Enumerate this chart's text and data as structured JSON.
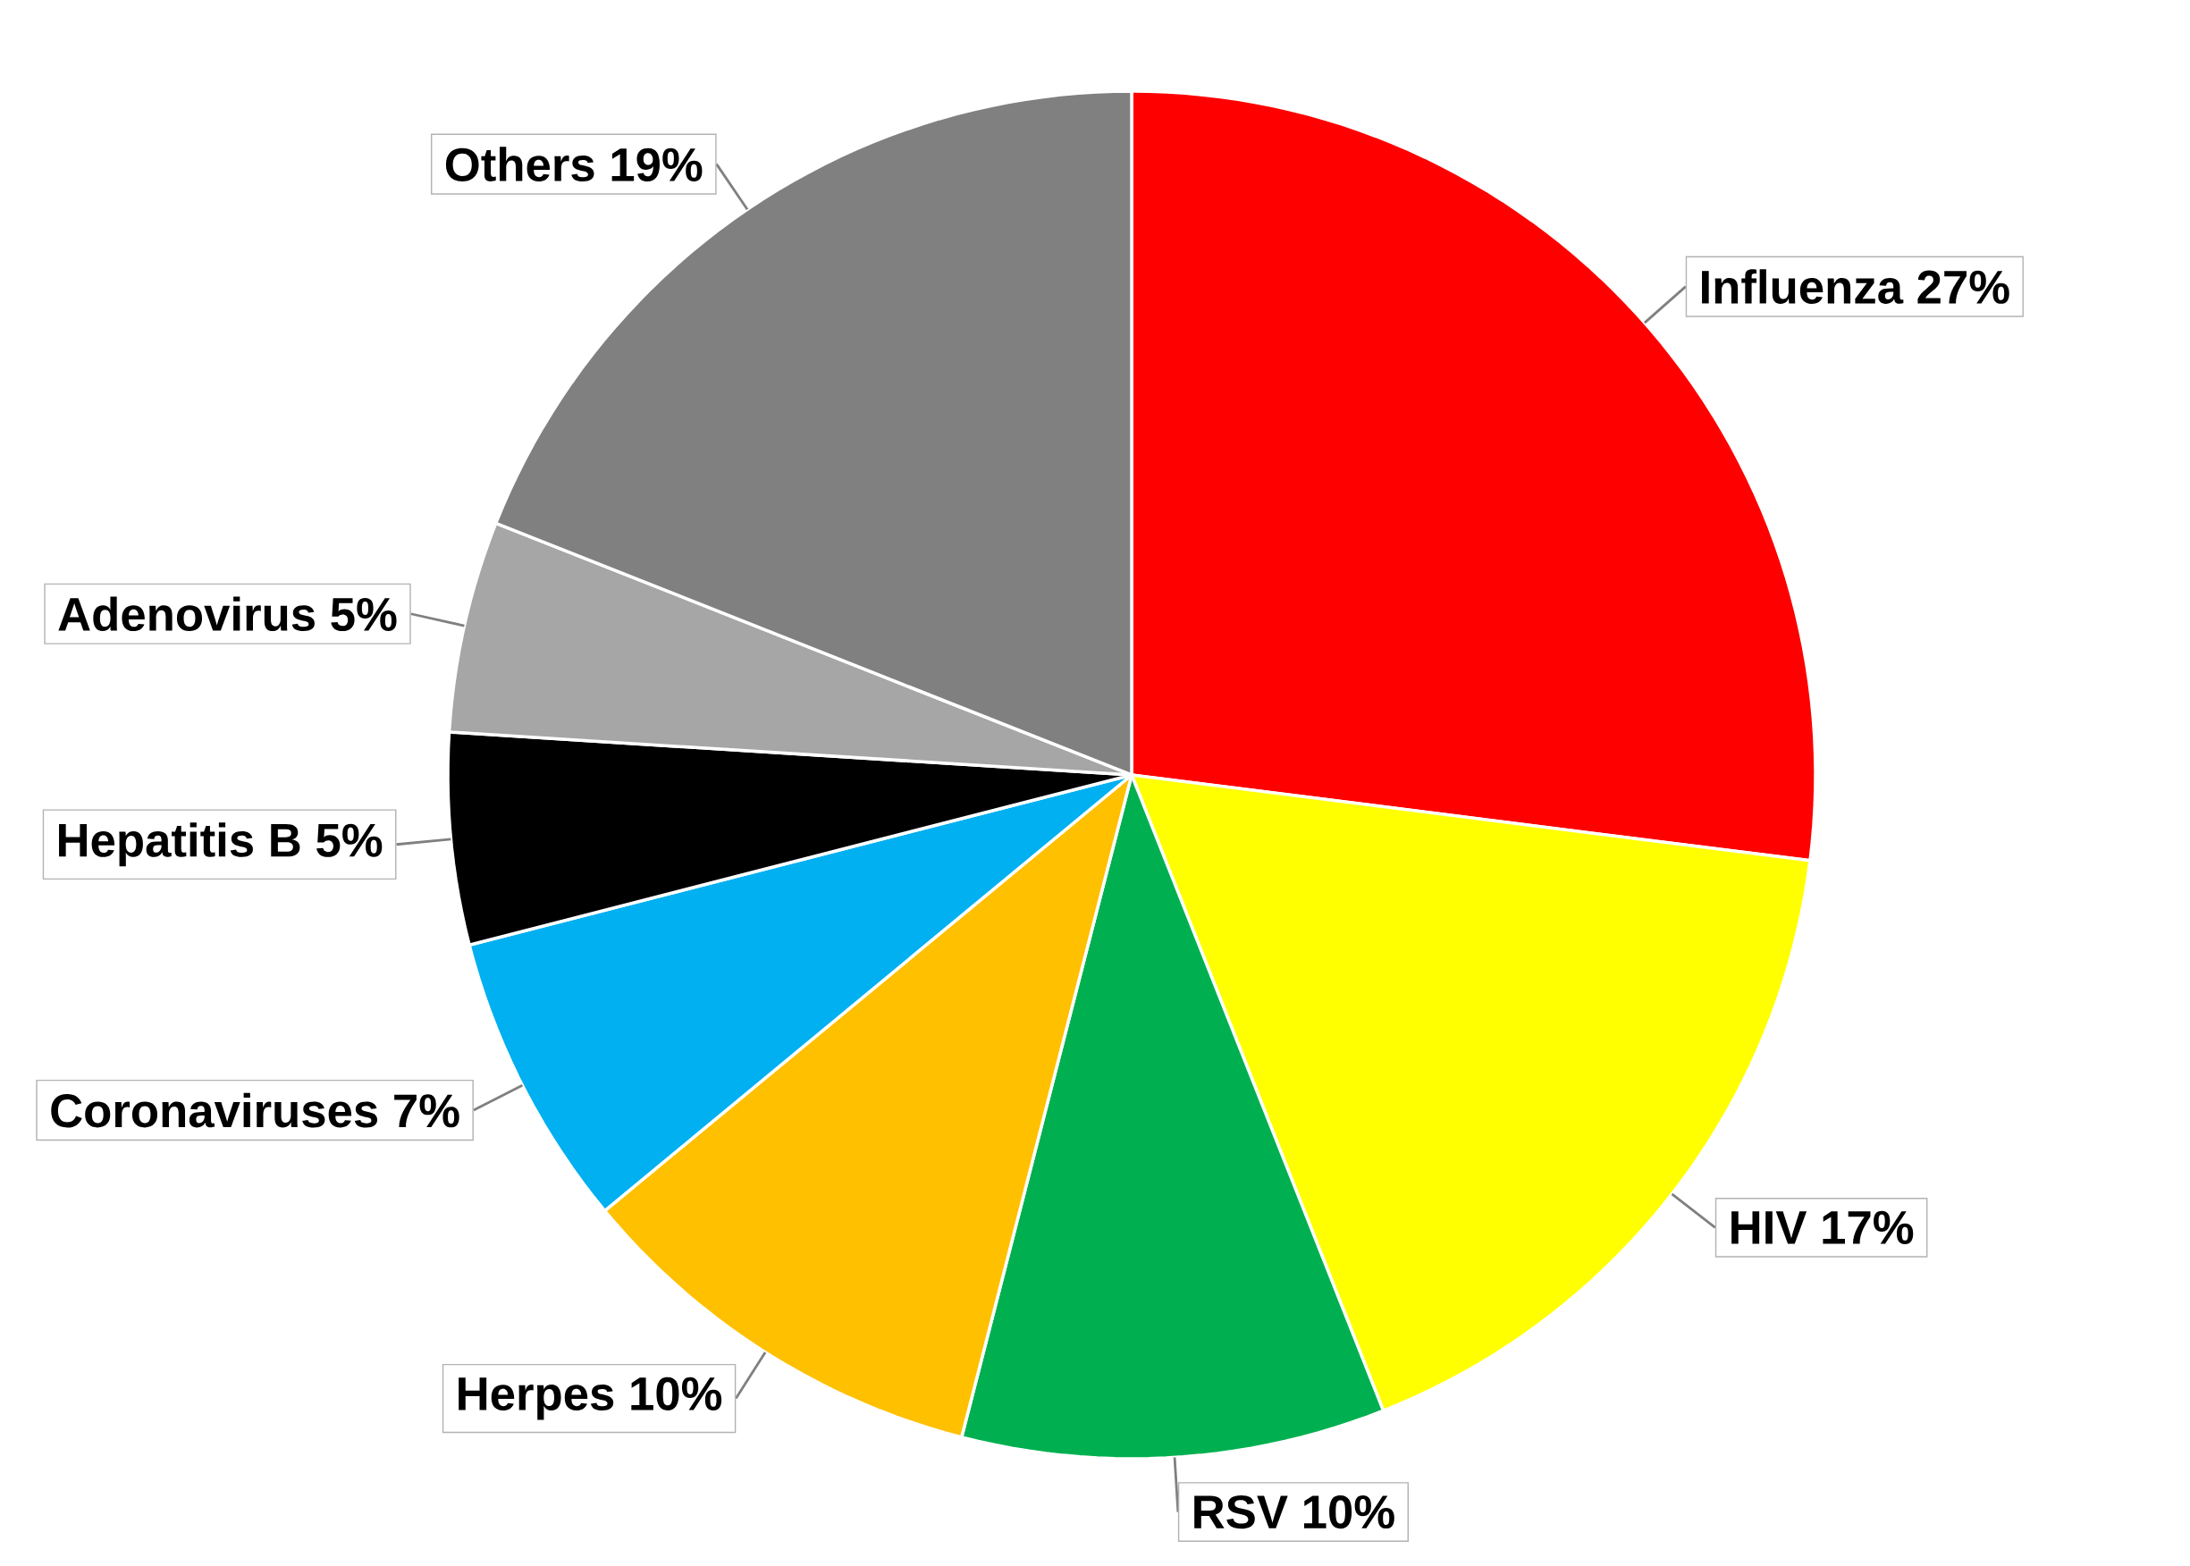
{
  "chart_data": {
    "type": "pie",
    "categories": [
      "Influenza",
      "HIV",
      "RSV",
      "Herpes",
      "Coronaviruses",
      "Hepatitis B",
      "Adenovirus",
      "Others"
    ],
    "values": [
      27,
      17,
      10,
      10,
      7,
      5,
      5,
      19
    ],
    "value_labels": [
      "27%",
      "17%",
      "10%",
      "10%",
      "7%",
      "5%",
      "5%",
      "19%"
    ],
    "colors": [
      "#ff0000",
      "#ffff00",
      "#00b050",
      "#ffc000",
      "#00b0f0",
      "#000000",
      "#a6a6a6",
      "#808080"
    ]
  }
}
